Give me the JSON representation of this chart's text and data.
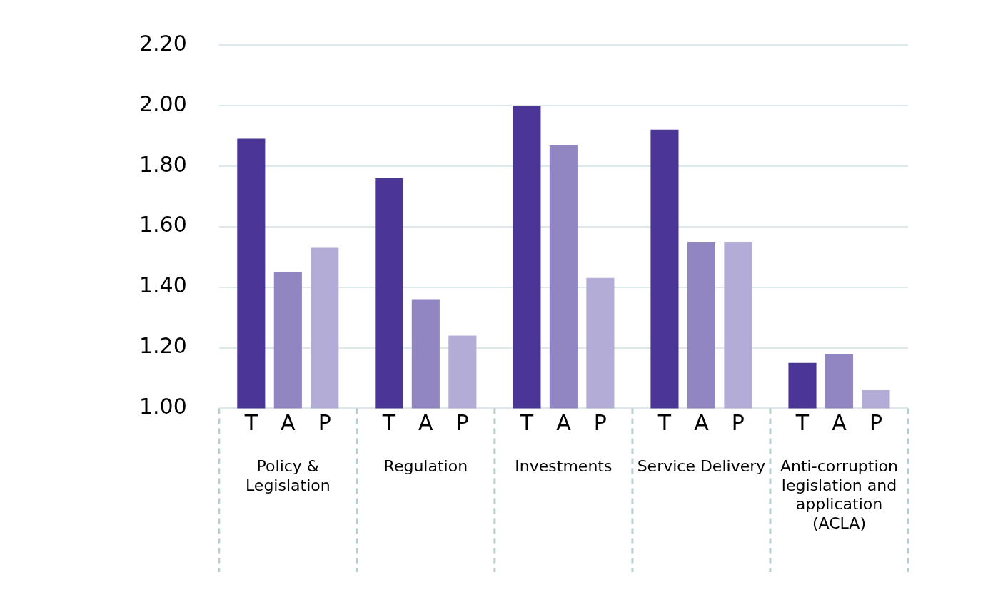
{
  "chart_data": {
    "type": "bar",
    "categories": [
      "Policy & Legislation",
      "Regulation",
      "Investments",
      "Service Delivery",
      "Anti-corruption legislation and application (ACLA)"
    ],
    "series": [
      {
        "name": "T",
        "color": "#4b3596",
        "values": [
          1.89,
          1.76,
          2.0,
          1.92,
          1.15
        ]
      },
      {
        "name": "A",
        "color": "#9286c2",
        "values": [
          1.45,
          1.36,
          1.87,
          1.55,
          1.18
        ]
      },
      {
        "name": "P",
        "color": "#b3acd6",
        "values": [
          1.53,
          1.24,
          1.43,
          1.55,
          1.06
        ]
      }
    ],
    "ylim": [
      1.0,
      2.2
    ],
    "yticks": [
      {
        "value": 1.0,
        "label": "1.00"
      },
      {
        "value": 1.2,
        "label": "1.20"
      },
      {
        "value": 1.4,
        "label": "1.40"
      },
      {
        "value": 1.6,
        "label": "1.60"
      },
      {
        "value": 1.8,
        "label": "1.80"
      },
      {
        "value": 2.0,
        "label": "2.00"
      },
      {
        "value": 2.2,
        "label": "2.20"
      }
    ],
    "grid": true,
    "legend": false
  }
}
